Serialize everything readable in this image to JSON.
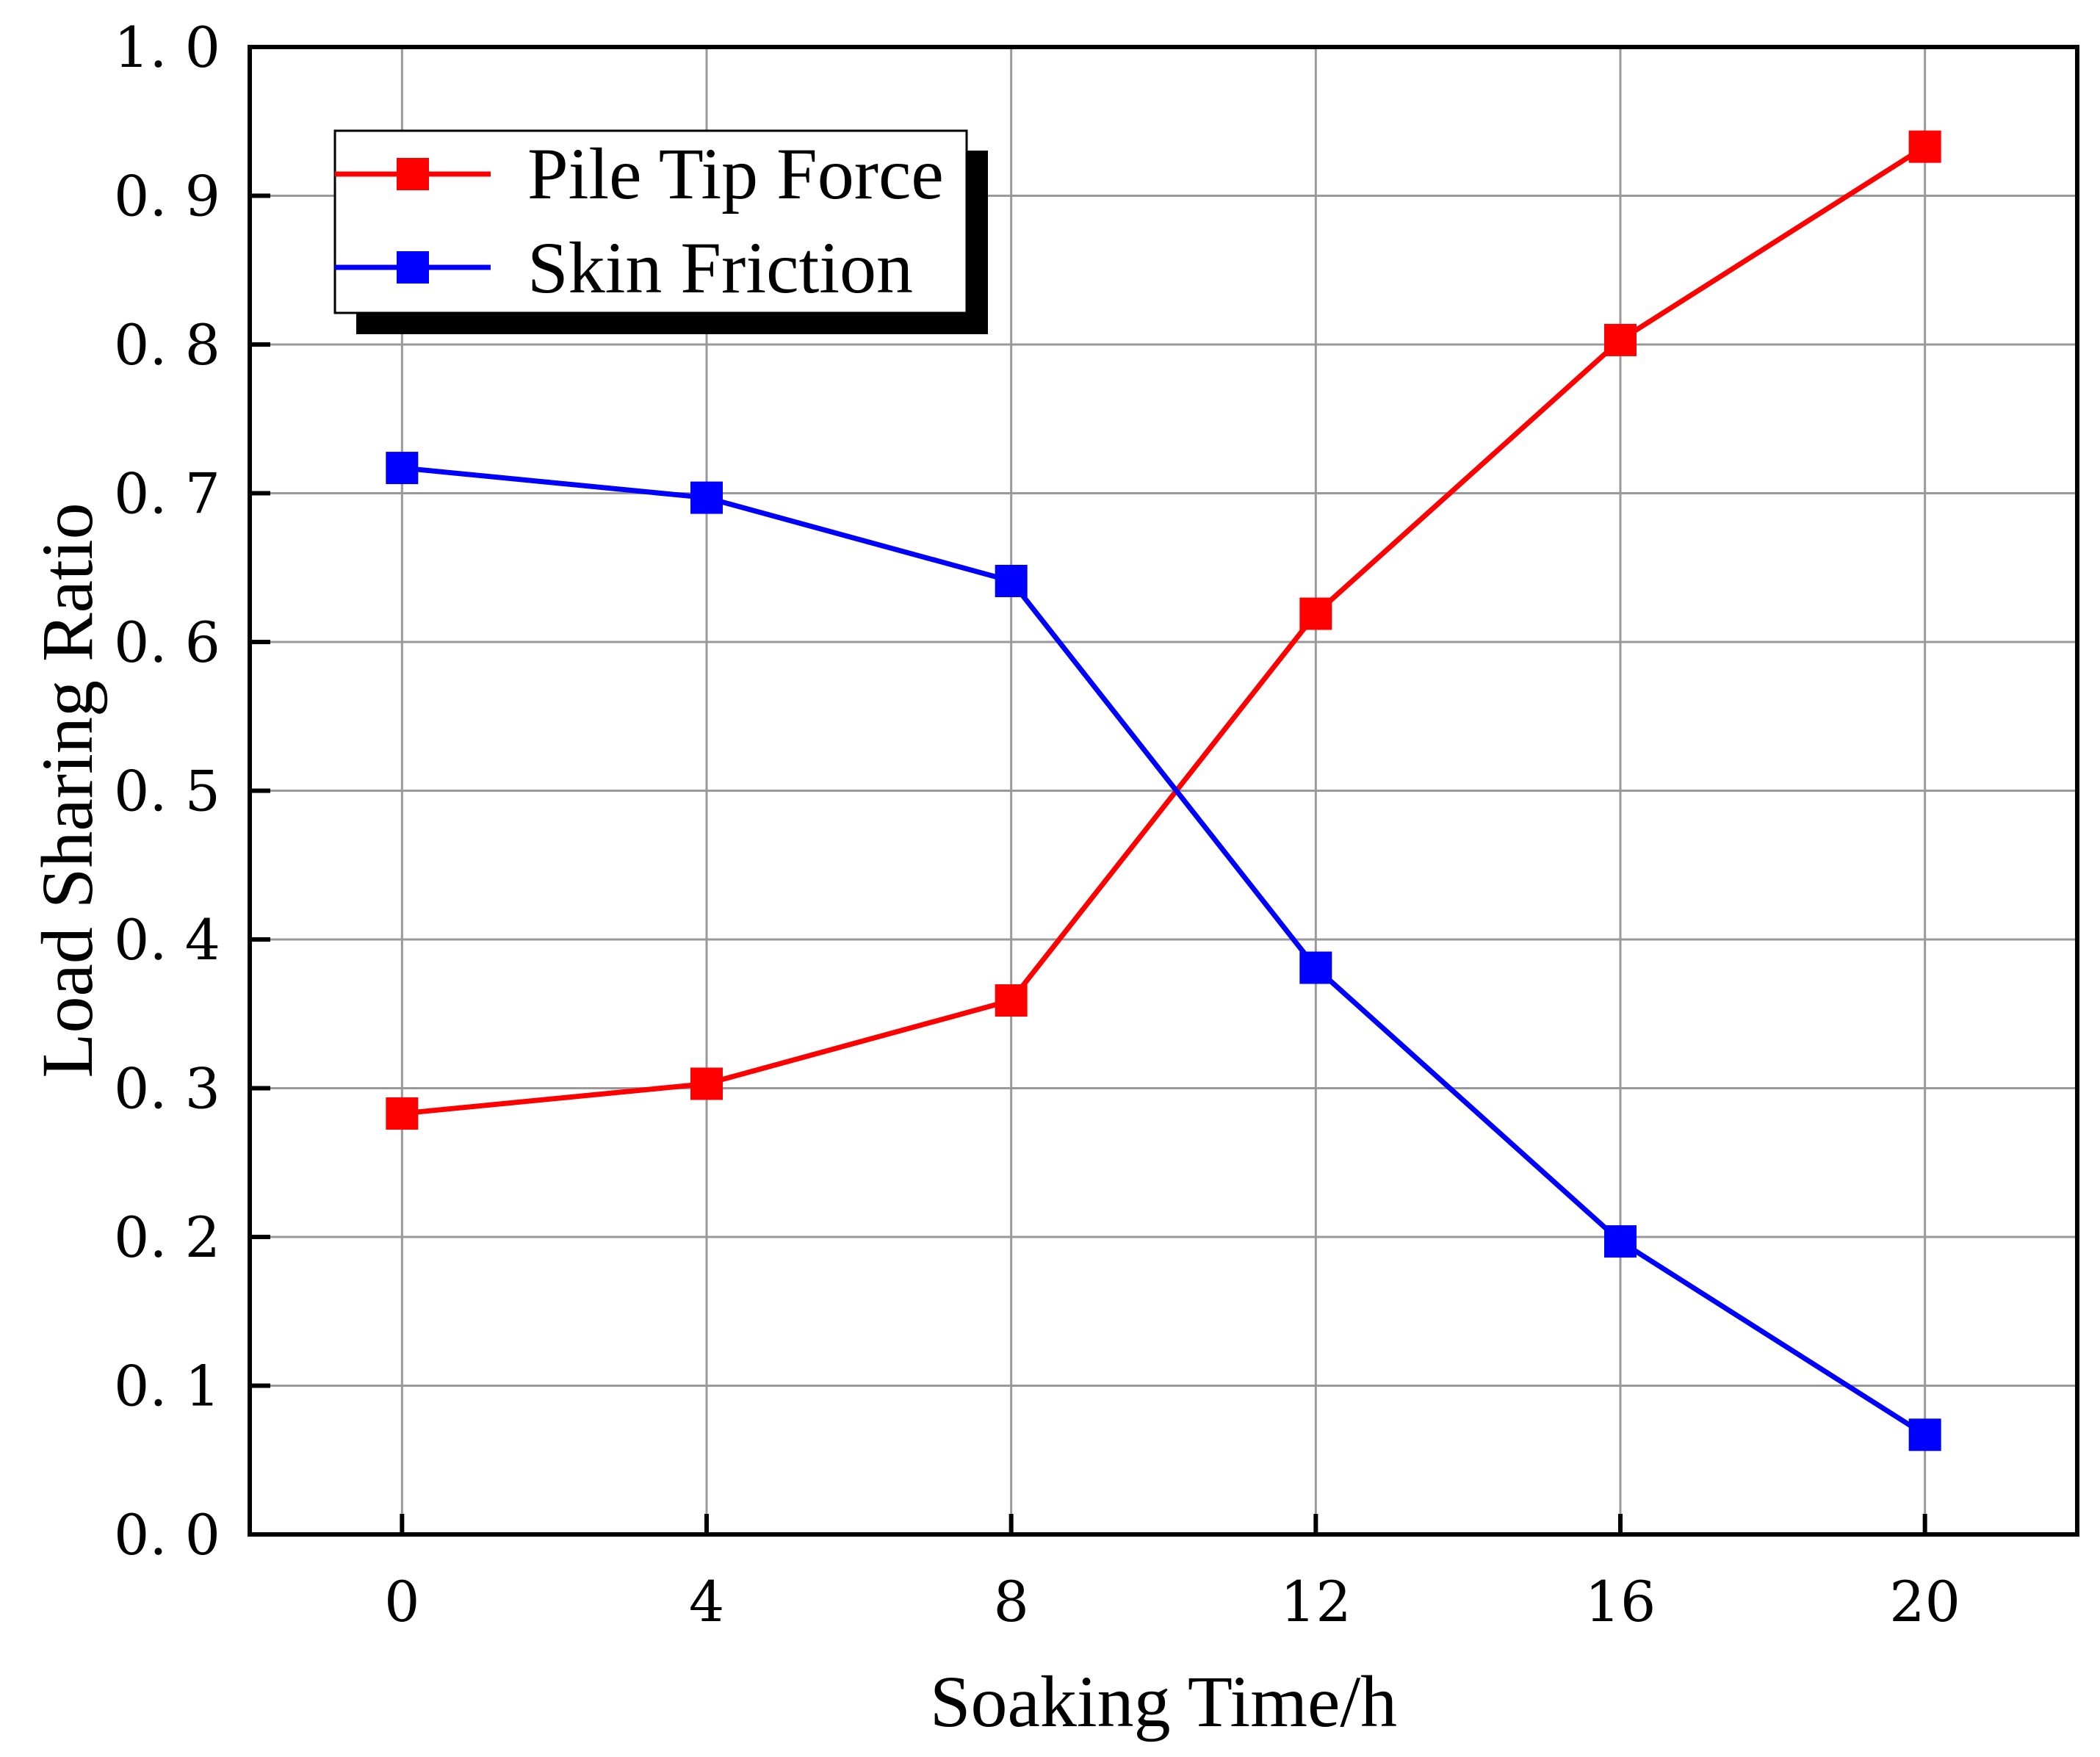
{
  "chart_data": {
    "type": "line",
    "x": [
      0,
      4,
      8,
      12,
      16,
      20
    ],
    "x_tick_labels": [
      "0",
      "4",
      "8",
      "12",
      "16",
      "20"
    ],
    "y_tick_labels": [
      "0. 0",
      "0. 1",
      "0. 2",
      "0. 3",
      "0. 4",
      "0. 5",
      "0. 6",
      "0. 7",
      "0. 8",
      "0. 9",
      "1. 0"
    ],
    "xlim": [
      -2,
      22
    ],
    "ylim": [
      0,
      1.0
    ],
    "xlabel": "Soaking Time/h",
    "ylabel": "Load Sharing Ratio",
    "grid": true,
    "legend_position": "top-left",
    "series": [
      {
        "name": "Pile Tip Force",
        "color": "#ff0000",
        "marker": "square",
        "values": [
          0.283,
          0.303,
          0.359,
          0.619,
          0.803,
          0.933
        ]
      },
      {
        "name": "Skin Friction",
        "color": "#0000ff",
        "marker": "square",
        "values": [
          0.717,
          0.697,
          0.641,
          0.381,
          0.197,
          0.067
        ]
      }
    ]
  }
}
